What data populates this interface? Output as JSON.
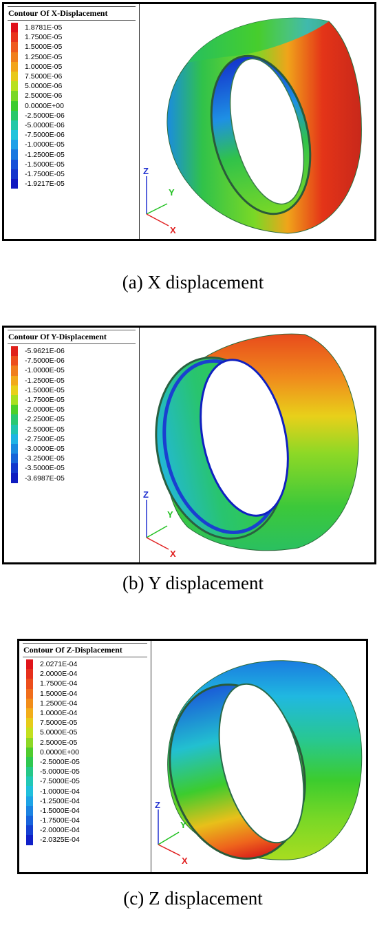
{
  "panels": [
    {
      "legend_title": "Contour Of X-Displacement",
      "values": [
        "1.8781E-05",
        "1.7500E-05",
        "1.5000E-05",
        "1.2500E-05",
        "1.0000E-05",
        "7.5000E-06",
        "5.0000E-06",
        "2.5000E-06",
        "0.0000E+00",
        "-2.5000E-06",
        "-5.0000E-06",
        "-7.5000E-06",
        "-1.0000E-05",
        "-1.2500E-05",
        "-1.5000E-05",
        "-1.7500E-05",
        "-1.9217E-05"
      ],
      "axes": {
        "z": "Z",
        "y": "Y",
        "x": "X"
      },
      "caption": "(a) X displacement"
    },
    {
      "legend_title": "Contour Of Y-Displacement",
      "values": [
        "-5.9621E-06",
        "-7.5000E-06",
        "-1.0000E-05",
        "-1.2500E-05",
        "-1.5000E-05",
        "-1.7500E-05",
        "-2.0000E-05",
        "-2.2500E-05",
        "-2.5000E-05",
        "-2.7500E-05",
        "-3.0000E-05",
        "-3.2500E-05",
        "-3.5000E-05",
        "-3.6987E-05"
      ],
      "axes": {
        "z": "Z",
        "y": "Y",
        "x": "X"
      },
      "caption": "(b) Y displacement"
    },
    {
      "legend_title": "Contour Of Z-Displacement",
      "values": [
        "2.0271E-04",
        "2.0000E-04",
        "1.7500E-04",
        "1.5000E-04",
        "1.2500E-04",
        "1.0000E-04",
        "7.5000E-05",
        "5.0000E-05",
        "2.5000E-05",
        "0.0000E+00",
        "-2.5000E-05",
        "-5.0000E-05",
        "-7.5000E-05",
        "-1.0000E-04",
        "-1.2500E-04",
        "-1.5000E-04",
        "-1.7500E-04",
        "-2.0000E-04",
        "-2.0325E-04"
      ],
      "axes": {
        "z": "Z",
        "y": "Y",
        "x": "X"
      },
      "caption": "(c) Z displacement"
    }
  ],
  "colors": {
    "x_scale": [
      "#e0101a",
      "#e8341c",
      "#ee5a1e",
      "#f07f1c",
      "#f2a41a",
      "#e8c81a",
      "#b8e01e",
      "#7ad826",
      "#3ccc2e",
      "#28c86a",
      "#22c8a8",
      "#20c4dc",
      "#1ea0e8",
      "#1a78e0",
      "#1650d8",
      "#1434cc",
      "#1018c0"
    ],
    "y_scale": [
      "#e0201a",
      "#ec4e1c",
      "#f07e1c",
      "#f2aa1a",
      "#e8d01a",
      "#a8e020",
      "#4cd02a",
      "#2ac872",
      "#22c4b0",
      "#20b4e4",
      "#1a8ce0",
      "#1664d8",
      "#1238cc",
      "#0e1cc0"
    ],
    "z_scale": [
      "#e0141a",
      "#e6301c",
      "#ec4e1c",
      "#f06e1c",
      "#f28e1a",
      "#f2ae1a",
      "#e6cc1a",
      "#c4e01e",
      "#8ed826",
      "#50cc2e",
      "#30c850",
      "#26c888",
      "#22c8b6",
      "#20c0dc",
      "#1ea4e6",
      "#1c84e2",
      "#1864dc",
      "#1440d2",
      "#1020c8"
    ]
  }
}
